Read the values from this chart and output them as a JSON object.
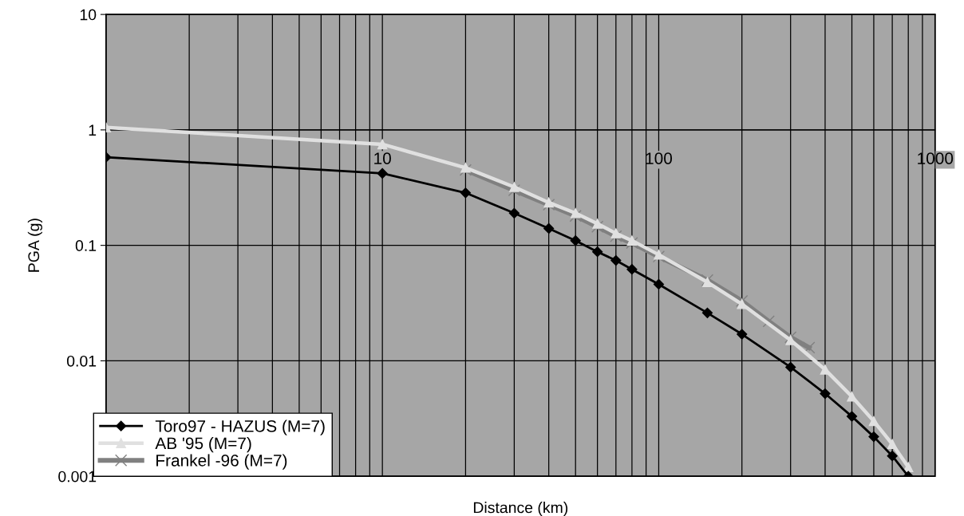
{
  "chart_data": {
    "type": "line",
    "xlabel": "Distance (km)",
    "ylabel": "PGA (g)",
    "log": "xy",
    "xlim": [
      1,
      1000
    ],
    "xticks": [
      10,
      100,
      1000
    ],
    "ylim": [
      0.001,
      10
    ],
    "yticks": [
      0.001,
      0.01,
      0.1,
      1,
      10
    ],
    "grid": true,
    "legend": "bottom left",
    "series": [
      {
        "name": "Toro97 - HAZUS (M=7)",
        "color": "#000000",
        "marker": "diamond",
        "x": [
          1,
          10,
          20,
          30,
          40,
          50,
          60,
          70,
          80,
          100,
          150,
          200,
          300,
          400,
          500,
          600,
          700,
          800
        ],
        "values": [
          0.58,
          0.42,
          0.285,
          0.19,
          0.14,
          0.11,
          0.088,
          0.074,
          0.062,
          0.046,
          0.026,
          0.017,
          0.0088,
          0.0052,
          0.0033,
          0.0022,
          0.0015,
          0.001
        ]
      },
      {
        "name": "AB '95 (M=7)",
        "color": "#e0e0e0",
        "marker": "triangle",
        "x": [
          1,
          10,
          20,
          30,
          40,
          50,
          60,
          70,
          80,
          100,
          150,
          200,
          300,
          400,
          500,
          600,
          700,
          800
        ],
        "values": [
          1.05,
          0.75,
          0.47,
          0.32,
          0.235,
          0.19,
          0.154,
          0.127,
          0.11,
          0.083,
          0.048,
          0.031,
          0.0151,
          0.0084,
          0.0049,
          0.003,
          0.0019,
          0.0012
        ]
      },
      {
        "name": "Frankel -96 (M=7)",
        "color": "#808080",
        "marker": "cross",
        "x": [
          20,
          30,
          40,
          50,
          60,
          70,
          80,
          100,
          150,
          200,
          250,
          300,
          350
        ],
        "values": [
          0.45,
          0.3,
          0.225,
          0.18,
          0.145,
          0.12,
          0.105,
          0.08,
          0.05,
          0.033,
          0.022,
          0.016,
          0.013
        ]
      }
    ]
  }
}
